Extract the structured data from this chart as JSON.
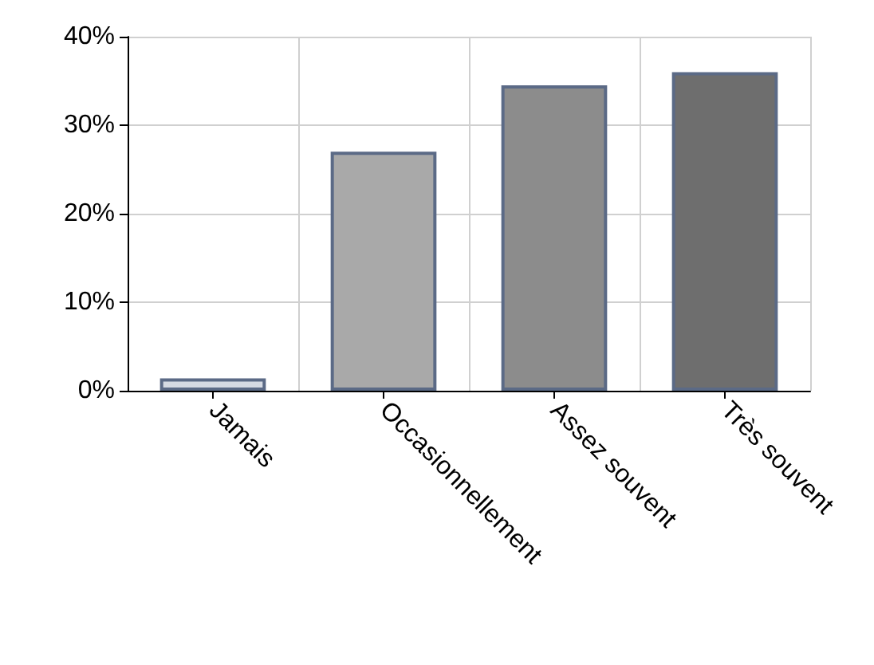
{
  "chart_data": {
    "type": "bar",
    "categories": [
      "Jamais",
      "Occasionnellement",
      "Assez souvent",
      "Très souvent"
    ],
    "values": [
      1.4,
      27,
      34.5,
      36
    ],
    "colors": [
      "#d5dae3",
      "#a9a9a9",
      "#8c8c8c",
      "#6e6e6e"
    ],
    "ylim": [
      0,
      40
    ],
    "yticks": [
      {
        "value": 0,
        "label": "0%"
      },
      {
        "value": 10,
        "label": "10%"
      },
      {
        "value": 20,
        "label": "20%"
      },
      {
        "value": 30,
        "label": "30%"
      },
      {
        "value": 40,
        "label": "40%"
      }
    ],
    "grid": true
  }
}
